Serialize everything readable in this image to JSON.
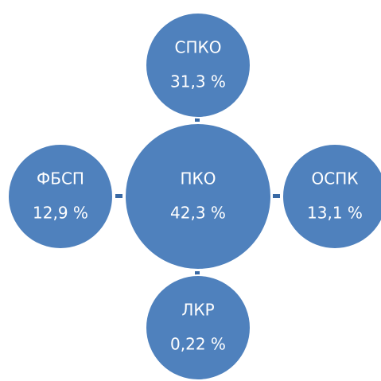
{
  "nodes": [
    {
      "label": "ПКО",
      "value": "42,3 %"
    },
    {
      "label": "СПКО",
      "value": "31,3 %"
    },
    {
      "label": "ОСПК",
      "value": "13,1 %"
    },
    {
      "label": "ЛКР",
      "value": "0,22 %"
    },
    {
      "label": "ФБСП",
      "value": "12,9 %"
    }
  ]
}
